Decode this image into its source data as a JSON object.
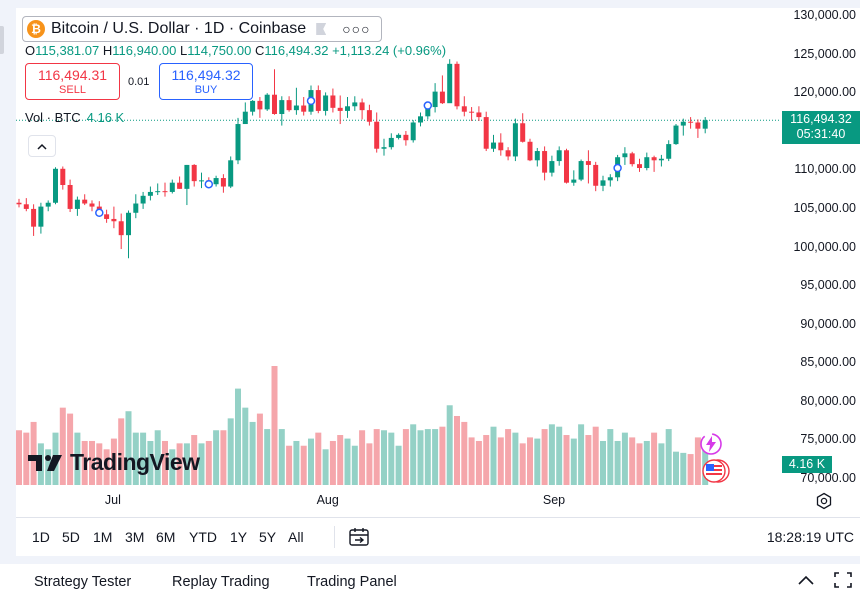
{
  "symbol": {
    "title": "Bitcoin / U.S. Dollar · 1D · Coinbase",
    "logo_letter": "₿",
    "flag_icon": "flag-icon",
    "more_icon": "more-dots-icon"
  },
  "ohlc": {
    "o_label": "O",
    "o": "115,381.07",
    "h_label": "H",
    "h": "116,940.00",
    "l_label": "L",
    "l": "114,750.00",
    "c_label": "C",
    "c": "116,494.32",
    "change": "+1,113.24 (+0.96%)"
  },
  "trade": {
    "sell_price": "116,494.31",
    "sell_label": "SELL",
    "spread": "0.01",
    "buy_price": "116,494.32",
    "buy_label": "BUY"
  },
  "volume_indicator": {
    "label": "Vol · BTC",
    "value": "4.16 K"
  },
  "price_axis": {
    "labels": [
      "130,000.00",
      "125,000.00",
      "120,000.00",
      "115,000.00",
      "110,000.00",
      "105,000.00",
      "100,000.00",
      "95,000.00",
      "90,000.00",
      "85,000.00",
      "80,000.00",
      "75,000.00",
      "70,000.00"
    ],
    "current_price": "116,494.32",
    "countdown": "05:31:40",
    "volume_tag": "4.16 K"
  },
  "time_axis": {
    "labels": [
      "Jul",
      "Aug",
      "Sep"
    ]
  },
  "watermark": {
    "text": "TradingView"
  },
  "toolbar": {
    "ranges": [
      "1D",
      "5D",
      "1M",
      "3M",
      "6M",
      "YTD",
      "1Y",
      "5Y",
      "All"
    ],
    "clock": "18:28:19 UTC"
  },
  "bottom_panel": {
    "tabs": [
      "Strategy Tester",
      "Replay Trading",
      "Trading Panel"
    ]
  },
  "colors": {
    "up": "#089981",
    "down": "#f23645",
    "up_volume": "#94d1c6",
    "down_volume": "#f5a6ab",
    "accent": "#2962ff"
  },
  "chart_data": {
    "type": "candlestick",
    "symbol": "BTCUSD",
    "interval": "1D",
    "ylim": [
      70000,
      130000
    ],
    "x_ticks": [
      "Jul",
      "Aug",
      "Sep"
    ],
    "ohlc": [
      [
        105800,
        106300,
        105200,
        105600
      ],
      [
        105600,
        106400,
        104700,
        105000
      ],
      [
        105000,
        105600,
        101500,
        102700
      ],
      [
        102700,
        105800,
        101800,
        105300
      ],
      [
        105300,
        106100,
        104700,
        105800
      ],
      [
        105800,
        110400,
        105600,
        110200
      ],
      [
        110200,
        110500,
        107500,
        108100
      ],
      [
        108100,
        108800,
        104600,
        105000
      ],
      [
        105000,
        106600,
        104100,
        106200
      ],
      [
        106200,
        106900,
        105500,
        105700
      ],
      [
        105700,
        106100,
        104700,
        105300
      ],
      [
        105300,
        106000,
        104000,
        104300
      ],
      [
        104300,
        104900,
        103200,
        103700
      ],
      [
        103700,
        105300,
        102500,
        103400
      ],
      [
        103400,
        104400,
        99800,
        101600
      ],
      [
        101600,
        104800,
        98600,
        104500
      ],
      [
        104500,
        106900,
        103800,
        105700
      ],
      [
        105700,
        107200,
        105000,
        106700
      ],
      [
        106700,
        107900,
        106100,
        107200
      ],
      [
        107200,
        108300,
        106800,
        107300
      ],
      [
        107300,
        108400,
        106600,
        107200
      ],
      [
        107200,
        108800,
        107000,
        108400
      ],
      [
        108400,
        109200,
        107600,
        107600
      ],
      [
        107600,
        110700,
        105500,
        110700
      ],
      [
        110700,
        110800,
        107900,
        108600
      ],
      [
        108600,
        109700,
        107700,
        108700
      ],
      [
        108700,
        109100,
        107900,
        108200
      ],
      [
        108200,
        109300,
        107900,
        109000
      ],
      [
        109000,
        109500,
        107100,
        107900
      ],
      [
        107900,
        111800,
        107700,
        111300
      ],
      [
        111300,
        116800,
        110800,
        116000
      ],
      [
        116000,
        118800,
        116200,
        117600
      ],
      [
        117600,
        119100,
        117100,
        119000
      ],
      [
        119000,
        119500,
        116800,
        117900
      ],
      [
        117900,
        120000,
        117700,
        119800
      ],
      [
        119800,
        123100,
        117200,
        117300
      ],
      [
        117300,
        119600,
        115800,
        119100
      ],
      [
        119100,
        119600,
        117600,
        117800
      ],
      [
        117800,
        120700,
        117200,
        118400
      ],
      [
        118400,
        119500,
        117100,
        117600
      ],
      [
        117600,
        121000,
        117200,
        120400
      ],
      [
        120400,
        121000,
        117400,
        117700
      ],
      [
        117700,
        120100,
        117100,
        119700
      ],
      [
        119700,
        120600,
        117500,
        118100
      ],
      [
        118100,
        119700,
        116000,
        117700
      ],
      [
        117700,
        119500,
        116800,
        118300
      ],
      [
        118300,
        119600,
        117700,
        118800
      ],
      [
        118800,
        119300,
        116600,
        117800
      ],
      [
        117800,
        118500,
        115800,
        116300
      ],
      [
        116300,
        117500,
        112300,
        112800
      ],
      [
        112800,
        114100,
        111900,
        113000
      ],
      [
        113000,
        114800,
        112700,
        114200
      ],
      [
        114200,
        114800,
        114000,
        114600
      ],
      [
        114600,
        115100,
        113200,
        113900
      ],
      [
        113900,
        116500,
        113600,
        116200
      ],
      [
        116200,
        117500,
        115700,
        117000
      ],
      [
        117000,
        118800,
        116600,
        118200
      ],
      [
        118200,
        121300,
        117500,
        120200
      ],
      [
        120200,
        122300,
        118600,
        118700
      ],
      [
        118700,
        124400,
        118800,
        123800
      ],
      [
        123800,
        124100,
        117900,
        118300
      ],
      [
        118300,
        119600,
        117000,
        117600
      ],
      [
        117600,
        118200,
        116400,
        117500
      ],
      [
        117500,
        118300,
        116400,
        116900
      ],
      [
        116900,
        117600,
        112500,
        112800
      ],
      [
        112800,
        114600,
        112400,
        113600
      ],
      [
        113600,
        114800,
        111900,
        112600
      ],
      [
        112600,
        113000,
        111300,
        111800
      ],
      [
        111800,
        116700,
        111200,
        116100
      ],
      [
        116100,
        117400,
        113600,
        113700
      ],
      [
        113700,
        114100,
        111200,
        111300
      ],
      [
        111300,
        112900,
        110500,
        112500
      ],
      [
        112500,
        113100,
        108700,
        109700
      ],
      [
        109700,
        111900,
        109200,
        111200
      ],
      [
        111200,
        113100,
        110600,
        112600
      ],
      [
        112600,
        112800,
        108300,
        108400
      ],
      [
        108400,
        110000,
        108000,
        108800
      ],
      [
        108800,
        111400,
        108600,
        111200
      ],
      [
        111200,
        112600,
        108300,
        110700
      ],
      [
        110700,
        111100,
        107300,
        108000
      ],
      [
        108000,
        109300,
        107300,
        108700
      ],
      [
        108700,
        109500,
        107900,
        109100
      ],
      [
        109100,
        112000,
        108600,
        111700
      ],
      [
        111700,
        113000,
        110700,
        112200
      ],
      [
        112200,
        112400,
        110500,
        110800
      ],
      [
        110800,
        111500,
        109800,
        110300
      ],
      [
        110300,
        112300,
        110000,
        111700
      ],
      [
        111700,
        111900,
        109800,
        111300
      ],
      [
        111300,
        112000,
        110500,
        111500
      ],
      [
        111500,
        113900,
        111200,
        113400
      ],
      [
        113400,
        116000,
        113300,
        115800
      ],
      [
        115800,
        116700,
        114500,
        116300
      ],
      [
        116300,
        116900,
        115400,
        116200
      ],
      [
        116200,
        116600,
        114200,
        115400
      ],
      [
        115400,
        116900,
        114800,
        116500
      ]
    ],
    "volume_relative": [
      0.46,
      0.44,
      0.53,
      0.35,
      0.3,
      0.44,
      0.65,
      0.6,
      0.44,
      0.37,
      0.37,
      0.35,
      0.3,
      0.39,
      0.56,
      0.62,
      0.44,
      0.44,
      0.37,
      0.46,
      0.37,
      0.3,
      0.35,
      0.35,
      0.42,
      0.35,
      0.37,
      0.46,
      0.46,
      0.56,
      0.81,
      0.65,
      0.53,
      0.6,
      0.47,
      1.0,
      0.47,
      0.33,
      0.37,
      0.33,
      0.39,
      0.44,
      0.3,
      0.37,
      0.42,
      0.39,
      0.33,
      0.46,
      0.35,
      0.47,
      0.46,
      0.44,
      0.33,
      0.47,
      0.51,
      0.46,
      0.47,
      0.47,
      0.49,
      0.67,
      0.58,
      0.53,
      0.4,
      0.37,
      0.42,
      0.49,
      0.4,
      0.47,
      0.44,
      0.35,
      0.4,
      0.39,
      0.47,
      0.51,
      0.49,
      0.42,
      0.39,
      0.51,
      0.42,
      0.49,
      0.37,
      0.47,
      0.37,
      0.44,
      0.4,
      0.35,
      0.37,
      0.44,
      0.35,
      0.47,
      0.28,
      0.27,
      0.26,
      0.4,
      0.33
    ],
    "event_markers": [
      {
        "index": 11,
        "price": 104500
      },
      {
        "index": 26,
        "price": 108200
      },
      {
        "index": 40,
        "price": 119000
      },
      {
        "index": 56,
        "price": 118400
      },
      {
        "index": 82,
        "price": 110300
      }
    ],
    "last_price": 116494.32
  }
}
